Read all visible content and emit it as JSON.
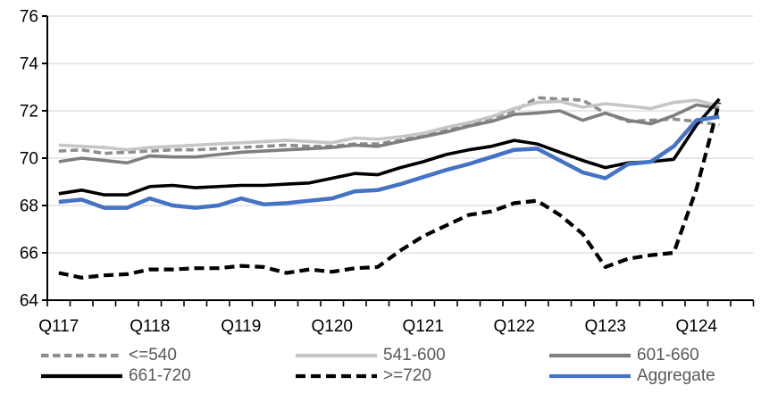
{
  "chart_data": {
    "type": "line",
    "title": "",
    "xlabel": "",
    "ylabel": "",
    "x_unit": "quarter",
    "n_points": 30,
    "ylim": [
      64,
      76
    ],
    "y_ticks": [
      64,
      66,
      68,
      70,
      72,
      74,
      76
    ],
    "grid": "horizontal",
    "legend_position": "bottom",
    "axis_color": "#000000",
    "gridline_color": "#d9d9d9",
    "legend_text_color": "#595959",
    "x_tick_labels": [
      {
        "label": "Q117",
        "index": 0
      },
      {
        "label": "Q118",
        "index": 4
      },
      {
        "label": "Q119",
        "index": 8
      },
      {
        "label": "Q120",
        "index": 12
      },
      {
        "label": "Q121",
        "index": 16
      },
      {
        "label": "Q122",
        "index": 20
      },
      {
        "label": "Q123",
        "index": 24
      },
      {
        "label": "Q124",
        "index": 28
      }
    ],
    "series": [
      {
        "name": "<=540",
        "key": "lte-540",
        "color": "#8e8e8e",
        "dash": "8.5 4.5",
        "width": 3.6,
        "values": [
          70.3,
          70.35,
          70.2,
          70.25,
          70.3,
          70.35,
          70.35,
          70.4,
          70.45,
          70.5,
          70.55,
          70.5,
          70.5,
          70.6,
          70.6,
          70.75,
          70.95,
          71.2,
          71.45,
          71.7,
          72.0,
          72.55,
          72.5,
          72.45,
          71.9,
          71.55,
          71.6,
          71.65,
          71.55,
          71.4
        ]
      },
      {
        "name": "541-600",
        "key": "541-600",
        "color": "#c6c6c6",
        "dash": null,
        "width": 3.6,
        "values": [
          70.55,
          70.5,
          70.45,
          70.35,
          70.45,
          70.5,
          70.55,
          70.6,
          70.65,
          70.7,
          70.75,
          70.7,
          70.65,
          70.85,
          70.8,
          70.9,
          71.05,
          71.3,
          71.5,
          71.75,
          72.1,
          72.35,
          72.4,
          72.15,
          72.3,
          72.2,
          72.1,
          72.35,
          72.45,
          72.2
        ]
      },
      {
        "name": "601-660",
        "key": "601-660",
        "color": "#7f7f7f",
        "dash": null,
        "width": 3.6,
        "values": [
          69.85,
          70.0,
          69.9,
          69.8,
          70.1,
          70.05,
          70.05,
          70.15,
          70.25,
          70.3,
          70.35,
          70.4,
          70.45,
          70.55,
          70.5,
          70.7,
          70.9,
          71.1,
          71.35,
          71.55,
          71.85,
          71.9,
          72.0,
          71.6,
          71.9,
          71.6,
          71.45,
          71.8,
          72.25,
          72.1
        ]
      },
      {
        "name": "661-720",
        "key": "661-720",
        "color": "#000000",
        "dash": null,
        "width": 3.6,
        "values": [
          68.5,
          68.65,
          68.45,
          68.45,
          68.8,
          68.85,
          68.75,
          68.8,
          68.85,
          68.85,
          68.9,
          68.95,
          69.15,
          69.35,
          69.3,
          69.6,
          69.85,
          70.15,
          70.35,
          70.5,
          70.75,
          70.6,
          70.25,
          69.9,
          69.6,
          69.8,
          69.85,
          69.95,
          71.4,
          72.5
        ]
      },
      {
        "name": ">=720",
        "key": "gte-720",
        "color": "#000000",
        "dash": "11 6",
        "width": 4.2,
        "values": [
          65.15,
          64.95,
          65.05,
          65.1,
          65.3,
          65.3,
          65.35,
          65.35,
          65.45,
          65.4,
          65.15,
          65.3,
          65.2,
          65.35,
          65.4,
          66.1,
          66.7,
          67.15,
          67.6,
          67.75,
          68.1,
          68.2,
          67.6,
          66.8,
          65.4,
          65.75,
          65.9,
          66.0,
          68.7,
          72.35
        ]
      },
      {
        "name": "Aggregate",
        "key": "aggregate",
        "color": "#4472c4",
        "dash": null,
        "width": 4.5,
        "values": [
          68.15,
          68.25,
          67.9,
          67.9,
          68.3,
          68.0,
          67.9,
          68.0,
          68.3,
          68.05,
          68.1,
          68.2,
          68.3,
          68.6,
          68.65,
          68.9,
          69.2,
          69.5,
          69.75,
          70.05,
          70.35,
          70.4,
          69.9,
          69.4,
          69.15,
          69.75,
          69.85,
          70.5,
          71.6,
          71.75
        ]
      }
    ]
  }
}
